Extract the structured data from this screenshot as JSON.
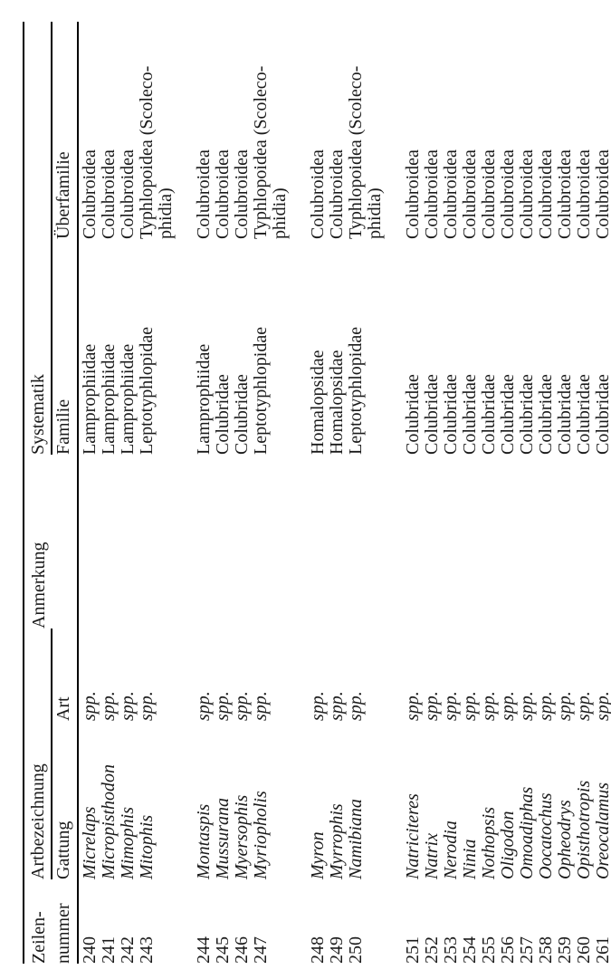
{
  "page": {
    "background": "#ffffff",
    "ink_color": "#1a1a1a",
    "rule_color": "#000000"
  },
  "table": {
    "header": {
      "zeilennummer_line1": "Zeilen-",
      "zeilennummer_line2": "nummer",
      "artbezeichnung": "Artbezeichnung",
      "gattung": "Gattung",
      "art": "Art",
      "anmerkung": "Anmerkung",
      "systematik": "Systematik",
      "familie": "Familie",
      "ueberfamilie": "Überfamilie"
    },
    "groups": [
      {
        "rows": [
          {
            "nr": "240",
            "gattung": "Micrelaps",
            "art": "spp.",
            "anmerkung": "",
            "familie": "Lamprophiidae",
            "ueberfamilie": "Colubroidea"
          },
          {
            "nr": "241",
            "gattung": "Micropisthodon",
            "art": "spp.",
            "anmerkung": "",
            "familie": "Lamprophiidae",
            "ueberfamilie": "Colubroidea"
          },
          {
            "nr": "242",
            "gattung": "Mimophis",
            "art": "spp.",
            "anmerkung": "",
            "familie": "Lamprophiidae",
            "ueberfamilie": "Colubroidea"
          },
          {
            "nr": "243",
            "gattung": "Mitophis",
            "art": "spp.",
            "anmerkung": "",
            "familie": "Leptotyphlopidae",
            "ueberfamilie": "Typhlopoidea (Scoleco-\nphidia)"
          }
        ]
      },
      {
        "rows": [
          {
            "nr": "244",
            "gattung": "Montaspis",
            "art": "spp.",
            "anmerkung": "",
            "familie": "Lamprophiidae",
            "ueberfamilie": "Colubroidea"
          },
          {
            "nr": "245",
            "gattung": "Mussurana",
            "art": "spp.",
            "anmerkung": "",
            "familie": "Colubridae",
            "ueberfamilie": "Colubroidea"
          },
          {
            "nr": "246",
            "gattung": "Myersophis",
            "art": "spp.",
            "anmerkung": "",
            "familie": "Colubridae",
            "ueberfamilie": "Colubroidea"
          },
          {
            "nr": "247",
            "gattung": "Myriopholis",
            "art": "spp.",
            "anmerkung": "",
            "familie": "Leptotyphlopidae",
            "ueberfamilie": "Typhlopoidea (Scoleco-\nphidia)"
          }
        ]
      },
      {
        "rows": [
          {
            "nr": "248",
            "gattung": "Myron",
            "art": "spp.",
            "anmerkung": "",
            "familie": "Homalopsidae",
            "ueberfamilie": "Colubroidea"
          },
          {
            "nr": "249",
            "gattung": "Myrrophis",
            "art": "spp.",
            "anmerkung": "",
            "familie": "Homalopsidae",
            "ueberfamilie": "Colubroidea"
          },
          {
            "nr": "250",
            "gattung": "Namibiana",
            "art": "spp.",
            "anmerkung": "",
            "familie": "Leptotyphlopidae",
            "ueberfamilie": "Typhlopoidea (Scoleco-\nphidia)"
          }
        ]
      },
      {
        "rows": [
          {
            "nr": "251",
            "gattung": "Natriciteres",
            "art": "spp.",
            "anmerkung": "",
            "familie": "Colubridae",
            "ueberfamilie": "Colubroidea"
          },
          {
            "nr": "252",
            "gattung": "Natrix",
            "art": "spp.",
            "anmerkung": "",
            "familie": "Colubridae",
            "ueberfamilie": "Colubroidea"
          },
          {
            "nr": "253",
            "gattung": "Nerodia",
            "art": "spp.",
            "anmerkung": "",
            "familie": "Colubridae",
            "ueberfamilie": "Colubroidea"
          },
          {
            "nr": "254",
            "gattung": "Ninia",
            "art": "spp.",
            "anmerkung": "",
            "familie": "Colubridae",
            "ueberfamilie": "Colubroidea"
          },
          {
            "nr": "255",
            "gattung": "Nothopsis",
            "art": "spp.",
            "anmerkung": "",
            "familie": "Colubridae",
            "ueberfamilie": "Colubroidea"
          },
          {
            "nr": "256",
            "gattung": "Oligodon",
            "art": "spp.",
            "anmerkung": "",
            "familie": "Colubridae",
            "ueberfamilie": "Colubroidea"
          },
          {
            "nr": "257",
            "gattung": "Omoadiphas",
            "art": "spp.",
            "anmerkung": "",
            "familie": "Colubridae",
            "ueberfamilie": "Colubroidea"
          },
          {
            "nr": "258",
            "gattung": "Oocatochus",
            "art": "spp.",
            "anmerkung": "",
            "familie": "Colubridae",
            "ueberfamilie": "Colubroidea"
          },
          {
            "nr": "259",
            "gattung": "Opheodrys",
            "art": "spp.",
            "anmerkung": "",
            "familie": "Colubridae",
            "ueberfamilie": "Colubroidea"
          },
          {
            "nr": "260",
            "gattung": "Opisthotropis",
            "art": "spp.",
            "anmerkung": "",
            "familie": "Colubridae",
            "ueberfamilie": "Colubroidea"
          },
          {
            "nr": "261",
            "gattung": "Oreocalamus",
            "art": "spp.",
            "anmerkung": "",
            "familie": "Colubridae",
            "ueberfamilie": "Colubroidea"
          }
        ]
      }
    ]
  }
}
